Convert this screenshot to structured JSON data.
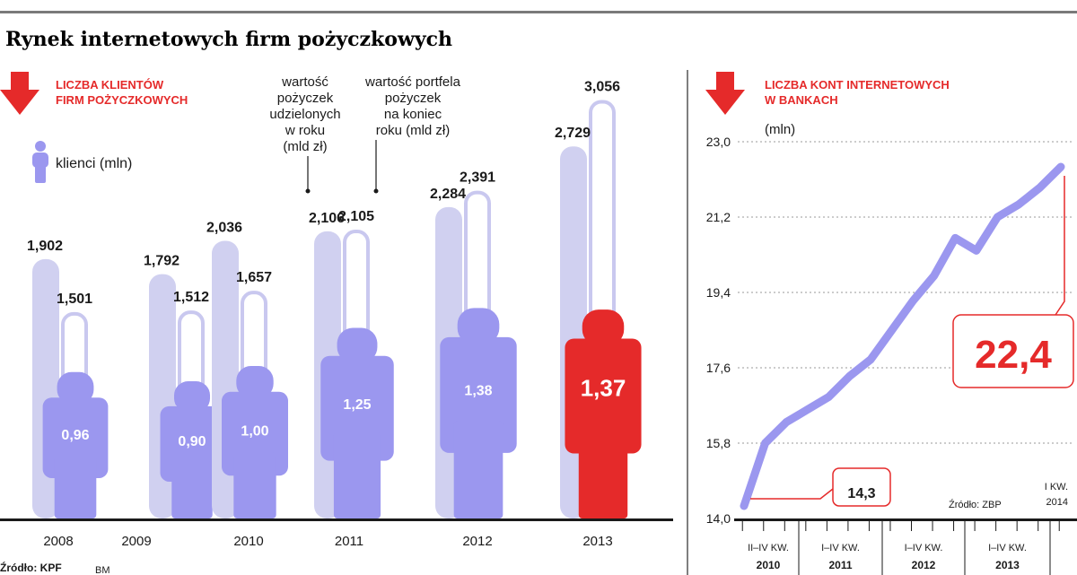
{
  "title": "Rynek internetowych firm pożyczkowych",
  "left_panel": {
    "heading": [
      "LICZBA KLIENTÓW",
      "FIRM POŻYCZKOWYCH"
    ],
    "legend_clients": "klienci (mln)",
    "annot_loans": [
      "wartość",
      "pożyczek",
      "udzielonych",
      "w roku",
      "(mld zł)"
    ],
    "annot_portfolio": [
      "wartość portfela",
      "pożyczek",
      "na koniec",
      "roku (mld zł)"
    ],
    "source": "Źródło: KPF",
    "author": "BM"
  },
  "right_panel": {
    "heading": [
      "LICZBA KONT INTERNETOWYCH",
      "W BANKACH"
    ],
    "unit": "(mln)",
    "callout_start": "14,3",
    "callout_end": "22,4",
    "source": "Źródło: ZBP",
    "last_label": [
      "I KW.",
      "2014"
    ],
    "groups": [
      {
        "label": "II–IV KW.",
        "year": "2010"
      },
      {
        "label": "I–IV KW.",
        "year": "2011"
      },
      {
        "label": "I–IV KW.",
        "year": "2012"
      },
      {
        "label": "I–IV KW.",
        "year": "2013"
      }
    ]
  },
  "colors": {
    "red": "#e52a2a",
    "bar_light": "#d0d0f0",
    "bar_outline": "#c9c8ef",
    "person": "#9b97ef",
    "person_highlight": "#e52a2a",
    "line": "#9b97ef"
  },
  "chart_data": [
    {
      "type": "bar",
      "categories": [
        "2008",
        "2009",
        "2010",
        "2011",
        "2012",
        "2013"
      ],
      "series": [
        {
          "name": "wartość pożyczek udzielonych w roku (mld zł)",
          "values": [
            1.902,
            1.792,
            2.036,
            2.106,
            2.284,
            2.729
          ],
          "labels": [
            "1,902",
            "1,792",
            "2,036",
            "2,106",
            "2,284",
            "2,729"
          ]
        },
        {
          "name": "wartość portfela pożyczek na koniec roku (mld zł)",
          "values": [
            1.501,
            1.512,
            1.657,
            2.105,
            2.391,
            3.056
          ],
          "labels": [
            "1,501",
            "1,512",
            "1,657",
            "2,105",
            "2,391",
            "3,056"
          ]
        },
        {
          "name": "klienci (mln)",
          "values": [
            0.96,
            0.9,
            1.0,
            1.25,
            1.38,
            1.37
          ],
          "labels": [
            "0,96",
            "0,90",
            "1,00",
            "1,25",
            "1,38",
            "1,37"
          ]
        }
      ]
    },
    {
      "type": "line",
      "ylabel": "(mln)",
      "ylim": [
        14.0,
        23.0
      ],
      "yticks": [
        "14,0",
        "15,8",
        "17,6",
        "19,4",
        "21,2",
        "23,0"
      ],
      "x": [
        "II kw. 2010",
        "III kw. 2010",
        "IV kw. 2010",
        "I kw. 2011",
        "II kw. 2011",
        "III kw. 2011",
        "IV kw. 2011",
        "I kw. 2012",
        "II kw. 2012",
        "III kw. 2012",
        "IV kw. 2012",
        "I kw. 2013",
        "II kw. 2013",
        "III kw. 2013",
        "IV kw. 2013",
        "I kw. 2014"
      ],
      "values": [
        14.3,
        15.8,
        16.3,
        16.6,
        16.9,
        17.4,
        17.8,
        18.5,
        19.2,
        19.8,
        20.7,
        20.4,
        21.2,
        21.5,
        21.9,
        22.4
      ]
    }
  ]
}
